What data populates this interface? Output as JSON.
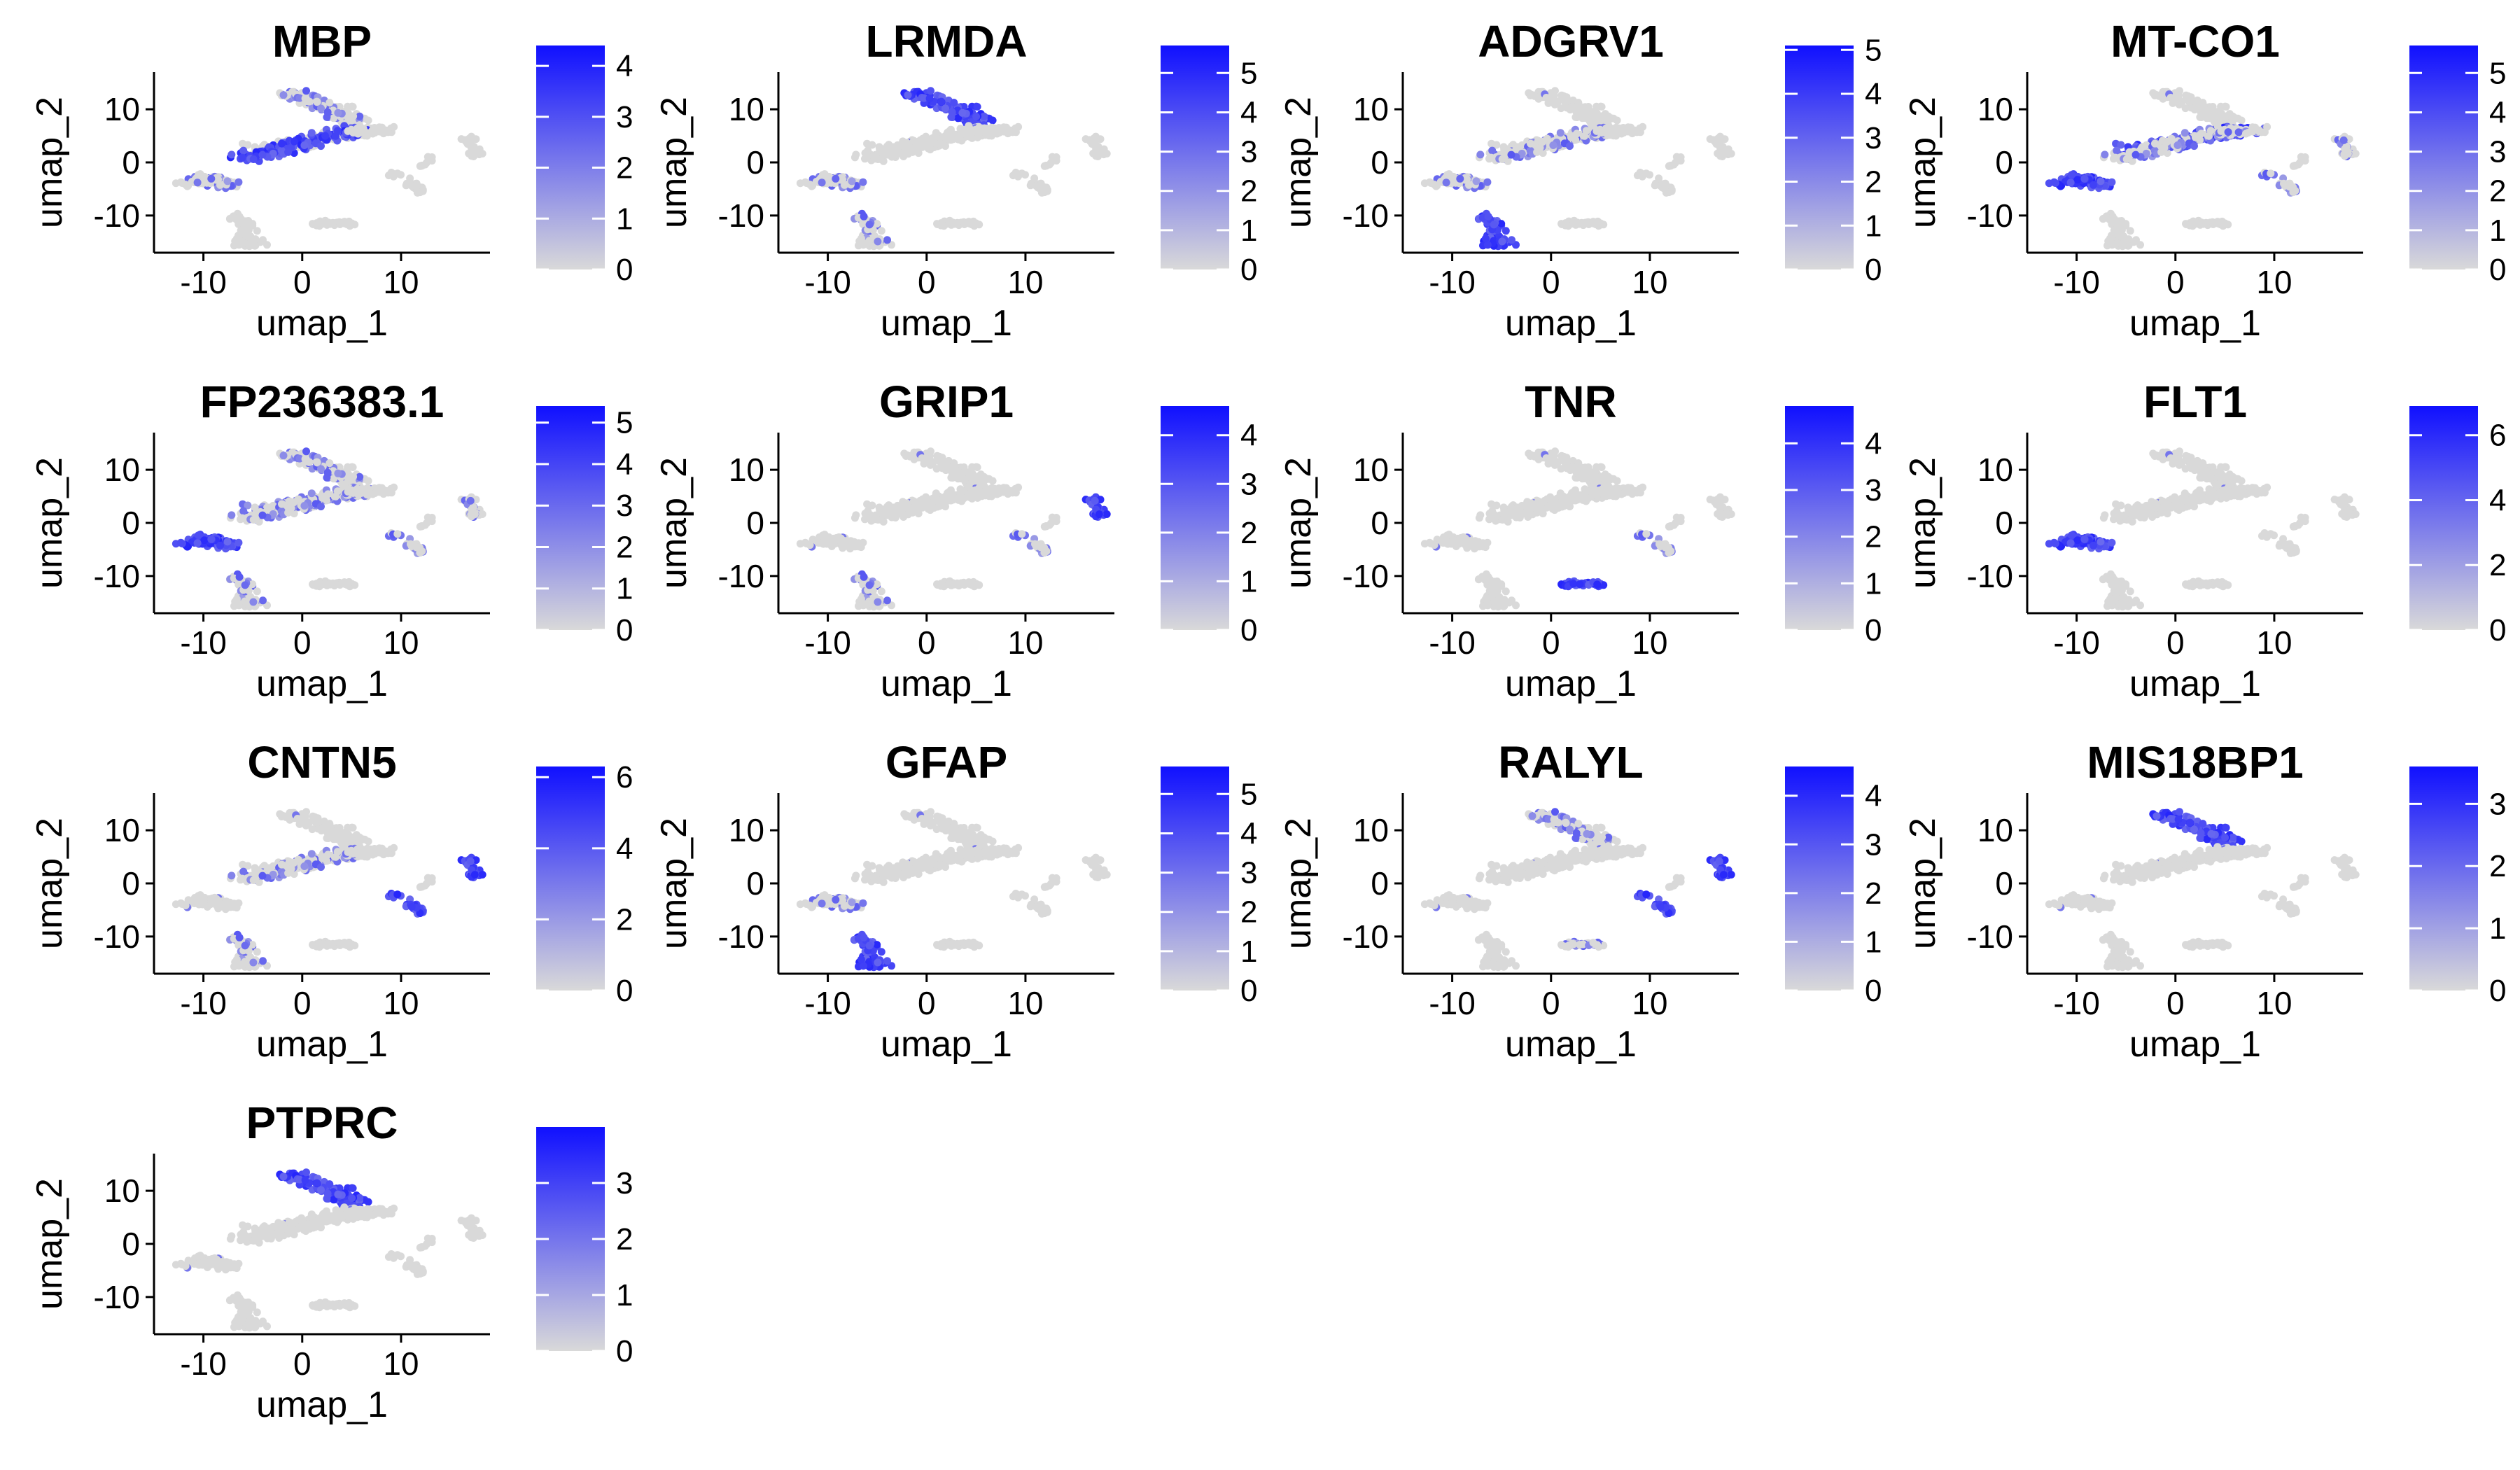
{
  "chart_data": {
    "type": "scatter",
    "subtype": "feature-plot",
    "xlabel": "umap_1",
    "ylabel": "umap_2",
    "xlim": [
      -15,
      19
    ],
    "ylim": [
      -17,
      17
    ],
    "x_ticks": [
      -10,
      0,
      10
    ],
    "y_ticks": [
      -10,
      0,
      10
    ],
    "grid": false,
    "legend": "colorbar-right-of-each-panel",
    "color_low": "#d9d9d9",
    "color_high": "#1010ff",
    "panels": [
      {
        "title": "MBP",
        "colorbar_ticks": [
          0,
          1,
          2,
          3,
          4
        ],
        "colorbar_max": 4.4,
        "high_clusters": [
          "c3"
        ],
        "mid_clusters": [
          "c1",
          "c5"
        ]
      },
      {
        "title": "LRMDA",
        "colorbar_ticks": [
          0,
          1,
          2,
          3,
          4,
          5
        ],
        "colorbar_max": 5.7,
        "high_clusters": [
          "c1"
        ],
        "mid_clusters": [
          "c5",
          "c6"
        ]
      },
      {
        "title": "ADGRV1",
        "colorbar_ticks": [
          0,
          1,
          2,
          3,
          4,
          5
        ],
        "colorbar_max": 5.1,
        "high_clusters": [
          "c6"
        ],
        "mid_clusters": [
          "c3",
          "c5"
        ]
      },
      {
        "title": "MT-CO1",
        "colorbar_ticks": [
          0,
          1,
          2,
          3,
          4,
          5
        ],
        "colorbar_max": 5.7,
        "high_clusters": [
          "c2",
          "c5"
        ],
        "mid_clusters": [
          "c3",
          "c4",
          "c8",
          "c10"
        ]
      },
      {
        "title": "FP236383.1",
        "colorbar_ticks": [
          0,
          1,
          2,
          3,
          4,
          5
        ],
        "colorbar_max": 5.4,
        "high_clusters": [
          "c5"
        ],
        "mid_clusters": [
          "c1",
          "c2",
          "c3",
          "c6",
          "c8",
          "c10"
        ]
      },
      {
        "title": "GRIP1",
        "colorbar_ticks": [
          0,
          1,
          2,
          3,
          4
        ],
        "colorbar_max": 4.6,
        "high_clusters": [
          "c10"
        ],
        "mid_clusters": [
          "c8",
          "c6"
        ]
      },
      {
        "title": "TNR",
        "colorbar_ticks": [
          0,
          1,
          2,
          3,
          4
        ],
        "colorbar_max": 4.8,
        "high_clusters": [
          "c7"
        ],
        "mid_clusters": [
          "c8"
        ]
      },
      {
        "title": "FLT1",
        "colorbar_ticks": [
          0,
          2,
          4,
          6
        ],
        "colorbar_max": 6.9,
        "high_clusters": [
          "c5"
        ],
        "mid_clusters": []
      },
      {
        "title": "CNTN5",
        "colorbar_ticks": [
          0,
          2,
          4,
          6
        ],
        "colorbar_max": 6.3,
        "high_clusters": [
          "c8",
          "c10"
        ],
        "mid_clusters": [
          "c3",
          "c6"
        ]
      },
      {
        "title": "GFAP",
        "colorbar_ticks": [
          0,
          1,
          2,
          3,
          4,
          5
        ],
        "colorbar_max": 5.7,
        "high_clusters": [
          "c6"
        ],
        "mid_clusters": [
          "c5"
        ]
      },
      {
        "title": "RALYL",
        "colorbar_ticks": [
          0,
          1,
          2,
          3,
          4
        ],
        "colorbar_max": 4.6,
        "high_clusters": [
          "c8",
          "c10"
        ],
        "mid_clusters": [
          "c7",
          "c1"
        ]
      },
      {
        "title": "MIS18BP1",
        "colorbar_ticks": [
          0,
          1,
          2,
          3
        ],
        "colorbar_max": 3.6,
        "high_clusters": [
          "c1"
        ],
        "mid_clusters": []
      },
      {
        "title": "PTPRC",
        "colorbar_ticks": [
          0,
          1,
          2,
          3
        ],
        "colorbar_max": 4.0,
        "high_clusters": [
          "c1"
        ],
        "mid_clusters": []
      }
    ]
  }
}
